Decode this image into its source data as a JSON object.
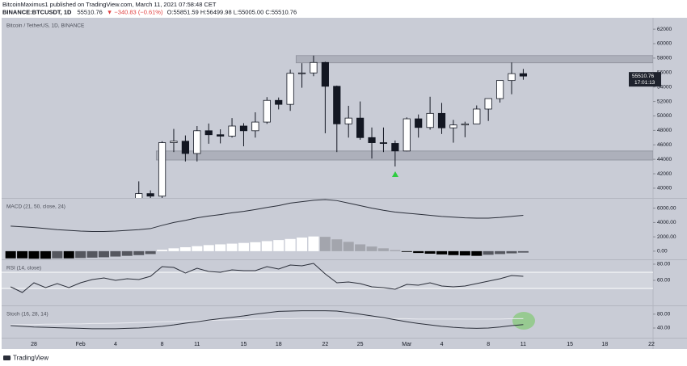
{
  "header": {
    "author": "BitcoinMaximus1 published on TradingView.com, March 11, 2021 07:58:48 CET",
    "symbol": "BINANCE:BTCUSDT, 1D",
    "last": "55510.76",
    "change": "▼ −340.83 (−0.61%)",
    "ohlc": "O:55851.59 H:56499.98 L:55005.00 C:55510.76"
  },
  "chart_data": [
    {
      "type": "candlestick",
      "title": "Bitcoin / TetherUS, 1D, BINANCE",
      "categories": [
        null,
        null,
        "28",
        null,
        null,
        null,
        "Feb",
        null,
        null,
        "4",
        null,
        null,
        null,
        "8",
        null,
        null,
        "11",
        null,
        null,
        null,
        "15",
        null,
        null,
        "18",
        null,
        null,
        null,
        "22",
        null,
        null,
        "25",
        null,
        null,
        null,
        "Mar",
        null,
        null,
        "4",
        null,
        null,
        null,
        "8",
        null,
        null,
        "11",
        null,
        null,
        null,
        "15",
        null,
        null,
        "18",
        null,
        null,
        null,
        "22"
      ],
      "open": [
        null,
        null,
        null,
        null,
        null,
        null,
        null,
        null,
        null,
        null,
        null,
        38300,
        39250,
        38900,
        46300,
        46500,
        44800,
        47950,
        47400,
        47200,
        48600,
        47950,
        49150,
        52150,
        51600,
        55900,
        55950,
        57400,
        54100,
        48900,
        49700,
        47000,
        46300,
        46200,
        45150,
        49600,
        48400,
        50350,
        48350,
        48750,
        48900,
        50950,
        52400,
        54900,
        55851.59,
        null,
        null,
        null,
        null,
        null,
        null,
        null,
        null,
        null,
        null,
        null
      ],
      "high": [
        null,
        null,
        null,
        null,
        null,
        null,
        null,
        null,
        null,
        null,
        null,
        40950,
        39700,
        46500,
        48200,
        47300,
        48600,
        48950,
        48150,
        49700,
        49000,
        50500,
        52600,
        52550,
        56400,
        57300,
        58350,
        57500,
        54200,
        51400,
        52000,
        48400,
        48400,
        46600,
        49800,
        50200,
        52650,
        51800,
        49450,
        49200,
        51450,
        52400,
        54900,
        57400,
        56499.98,
        null,
        null,
        null,
        null,
        null,
        null,
        null,
        null,
        null,
        null,
        null
      ],
      "low": [
        null,
        null,
        null,
        null,
        null,
        null,
        null,
        null,
        null,
        null,
        null,
        38200,
        37350,
        37950,
        45000,
        43700,
        43700,
        46150,
        46200,
        47000,
        45800,
        47000,
        48900,
        50900,
        50700,
        53900,
        55500,
        47600,
        45000,
        47000,
        46700,
        44100,
        45000,
        43000,
        45100,
        47000,
        48100,
        47500,
        46300,
        47050,
        48900,
        49300,
        51850,
        53000,
        55005.0,
        null,
        null,
        null,
        null,
        null,
        null,
        null,
        null,
        null,
        null,
        null
      ],
      "close": [
        null,
        null,
        null,
        null,
        null,
        null,
        null,
        null,
        null,
        null,
        null,
        39250,
        38900,
        46300,
        46500,
        44800,
        47950,
        47400,
        47200,
        48600,
        47950,
        49150,
        52150,
        51600,
        55900,
        55950,
        57400,
        54100,
        48900,
        49700,
        47000,
        46300,
        46200,
        45150,
        49600,
        48400,
        50350,
        48350,
        48750,
        48900,
        50950,
        52400,
        54900,
        55851.59,
        55510.76,
        null,
        null,
        null,
        null,
        null,
        null,
        null,
        null,
        null,
        null,
        null
      ],
      "up_color": "#ffffff",
      "down_color": "#131722",
      "zones": [
        {
          "top": 58350,
          "bottom": 57350,
          "start": 25
        },
        {
          "top": 45150,
          "bottom": 43900,
          "start": 13
        }
      ],
      "last": {
        "value": 55510.76,
        "label": "55510.76",
        "countdown": "17:01:13"
      },
      "ylim": [
        38650,
        63580
      ],
      "yticks": [
        40000,
        42000,
        44000,
        46000,
        48000,
        50000,
        52000,
        54000,
        56000,
        58000,
        60000,
        62000
      ]
    },
    {
      "type": "macd",
      "title": "MACD (21, 50, close, 24)",
      "series": [
        {
          "color": "#2a2e39",
          "values": [
            3500,
            3400,
            3300,
            3150,
            3000,
            2900,
            2800,
            2750,
            2750,
            2800,
            2900,
            3000,
            3150,
            3600,
            4000,
            4300,
            4650,
            4900,
            5100,
            5350,
            5550,
            5800,
            6100,
            6350,
            6700,
            6900,
            7100,
            7200,
            7050,
            6700,
            6350,
            6000,
            5700,
            5450,
            5300,
            5150,
            5000,
            4850,
            4750,
            4650,
            4600,
            4600,
            4700,
            4850,
            5000,
            null,
            null,
            null,
            null,
            null,
            null,
            null,
            null,
            null,
            null,
            null
          ]
        }
      ],
      "histogram": {
        "values": [
          -1000,
          -1000,
          -1050,
          -1050,
          -1000,
          -1000,
          -950,
          -900,
          -850,
          -750,
          -650,
          -550,
          -400,
          200,
          400,
          550,
          700,
          850,
          950,
          1050,
          1150,
          1250,
          1400,
          1550,
          1700,
          1900,
          2050,
          2000,
          1650,
          1300,
          950,
          650,
          400,
          150,
          -100,
          -250,
          -350,
          -450,
          -550,
          -600,
          -650,
          -500,
          -400,
          -300,
          -200,
          null,
          null,
          null,
          null,
          null,
          null,
          null,
          null,
          null,
          null,
          null
        ],
        "colors": {
          "rising_above": "#ffffff",
          "falling_above": "#a3a5ad",
          "falling_below": "#000000",
          "rising_below": "#55575f"
        }
      },
      "ylim": [
        -1140,
        7310
      ],
      "yticks": [
        {
          "value": 0,
          "label": "0.00"
        },
        {
          "value": 2000,
          "label": "2000.00"
        },
        {
          "value": 4000,
          "label": "4000.00"
        },
        {
          "value": 6000,
          "label": "6000.00"
        }
      ]
    },
    {
      "type": "rsi",
      "title": "RSI (14, close)",
      "color": "#2a2e39",
      "values": [
        52,
        45,
        57,
        51,
        56,
        51,
        57,
        61,
        63,
        60,
        62,
        61,
        65,
        77,
        76,
        69,
        75,
        71,
        70,
        73,
        72,
        72,
        77,
        74,
        79,
        78,
        81,
        68,
        57,
        58,
        56,
        52,
        51,
        49,
        55,
        54,
        57,
        53,
        52,
        53,
        56,
        59,
        62,
        66,
        65,
        null,
        null,
        null,
        null,
        null,
        null,
        null,
        null,
        null,
        null,
        null
      ],
      "levels": [
        70,
        50
      ],
      "ylim": [
        29,
        85
      ],
      "yticks": [
        {
          "value": 60,
          "label": "60.00"
        },
        {
          "value": 80,
          "label": "80.00"
        }
      ]
    },
    {
      "type": "stoch",
      "title": "Stoch (16, 28, 14)",
      "series": [
        {
          "color": "#2a2e39",
          "values": [
            47,
            45,
            43,
            42,
            41,
            40,
            39,
            38,
            38,
            38,
            39,
            40,
            42,
            45,
            49,
            54,
            58,
            63,
            67,
            71,
            75,
            80,
            84,
            88,
            89,
            90,
            90,
            90,
            89,
            85,
            80,
            75,
            70,
            64,
            58,
            53,
            49,
            45,
            42,
            40,
            39,
            40,
            43,
            47,
            50,
            null,
            null,
            null,
            null,
            null,
            null,
            null,
            null,
            null,
            null,
            null
          ]
        },
        {
          "color": "#e9eaf0",
          "values": [
            50,
            50,
            50,
            51,
            51,
            52,
            52,
            53,
            53,
            54,
            55,
            56,
            57,
            58,
            59,
            60,
            61,
            62,
            63,
            64,
            65,
            66,
            66,
            67,
            67,
            68,
            68,
            68,
            68,
            68,
            68,
            68,
            67,
            67,
            67,
            66,
            66,
            66,
            66,
            66,
            66,
            66,
            66,
            67,
            67,
            null,
            null,
            null,
            null,
            null,
            null,
            null,
            null,
            null,
            null,
            null
          ]
        }
      ],
      "ylim": [
        12,
        103
      ],
      "yticks": [
        {
          "value": 40,
          "label": "40.00"
        },
        {
          "value": 80,
          "label": "80.00"
        }
      ]
    }
  ],
  "footer": {
    "brand": "TradingView"
  }
}
